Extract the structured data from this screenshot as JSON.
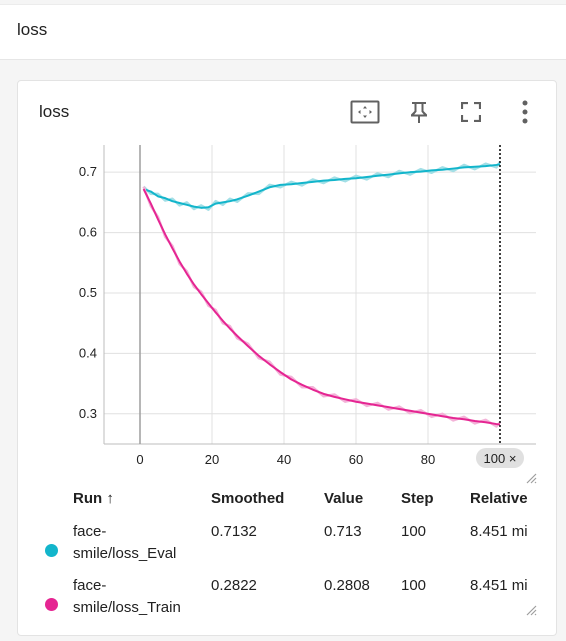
{
  "section": {
    "title": "loss"
  },
  "card": {
    "title": "loss",
    "toolbar_icons": [
      "fit-domain-icon",
      "pin-icon",
      "fullscreen-icon",
      "more-vertical-icon"
    ]
  },
  "chart_data": {
    "type": "line",
    "x_ticks": [
      "0",
      "20",
      "40",
      "60",
      "80"
    ],
    "y_ticks": [
      "0.3",
      "0.4",
      "0.5",
      "0.6",
      "0.7"
    ],
    "xlim": [
      -10,
      110
    ],
    "ylim": [
      0.25,
      0.745
    ],
    "series": [
      {
        "name": "face-smile/loss_Eval",
        "color": "#12b5cb",
        "raw_color": "#a3dfe6",
        "x": [
          1,
          3,
          5,
          7,
          9,
          11,
          13,
          15,
          17,
          19,
          21,
          23,
          25,
          27,
          30,
          33,
          36,
          39,
          42,
          45,
          48,
          51,
          54,
          57,
          60,
          63,
          66,
          69,
          72,
          75,
          78,
          81,
          84,
          87,
          90,
          93,
          96,
          99,
          100
        ],
        "values": [
          0.672,
          0.668,
          0.66,
          0.657,
          0.652,
          0.649,
          0.646,
          0.643,
          0.641,
          0.642,
          0.648,
          0.65,
          0.652,
          0.655,
          0.661,
          0.668,
          0.675,
          0.679,
          0.68,
          0.682,
          0.684,
          0.686,
          0.687,
          0.689,
          0.69,
          0.692,
          0.694,
          0.696,
          0.698,
          0.7,
          0.701,
          0.703,
          0.704,
          0.706,
          0.708,
          0.709,
          0.71,
          0.712,
          0.7132
        ]
      },
      {
        "name": "face-smile/loss_Train",
        "color": "#e52592",
        "raw_color": "#f3b3d8",
        "x": [
          1,
          3,
          5,
          7,
          9,
          11,
          13,
          15,
          17,
          19,
          21,
          23,
          25,
          27,
          30,
          33,
          36,
          39,
          42,
          45,
          48,
          51,
          54,
          57,
          60,
          63,
          66,
          69,
          72,
          75,
          78,
          81,
          84,
          87,
          90,
          93,
          96,
          99,
          100
        ],
        "values": [
          0.672,
          0.648,
          0.622,
          0.597,
          0.574,
          0.552,
          0.532,
          0.514,
          0.498,
          0.483,
          0.468,
          0.454,
          0.441,
          0.429,
          0.412,
          0.396,
          0.382,
          0.369,
          0.357,
          0.348,
          0.34,
          0.333,
          0.328,
          0.324,
          0.32,
          0.317,
          0.314,
          0.311,
          0.308,
          0.305,
          0.302,
          0.299,
          0.296,
          0.293,
          0.291,
          0.288,
          0.286,
          0.283,
          0.2822
        ]
      }
    ],
    "hover_step": 100,
    "hover_chip": "100 ×"
  },
  "table": {
    "headers": {
      "run": "Run ↑",
      "smoothed": "Smoothed",
      "value": "Value",
      "step": "Step",
      "relative": "Relative"
    },
    "rows": [
      {
        "run_line1": "face-",
        "run_line2": "smile/loss_Eval",
        "color": "#12b5cb",
        "smoothed": "0.7132",
        "value": "0.713",
        "step": "100",
        "relative": "8.451 mi"
      },
      {
        "run_line1": "face-",
        "run_line2": "smile/loss_Train",
        "color": "#e52592",
        "smoothed": "0.2822",
        "value": "0.2808",
        "step": "100",
        "relative": "8.451 mi"
      }
    ]
  }
}
